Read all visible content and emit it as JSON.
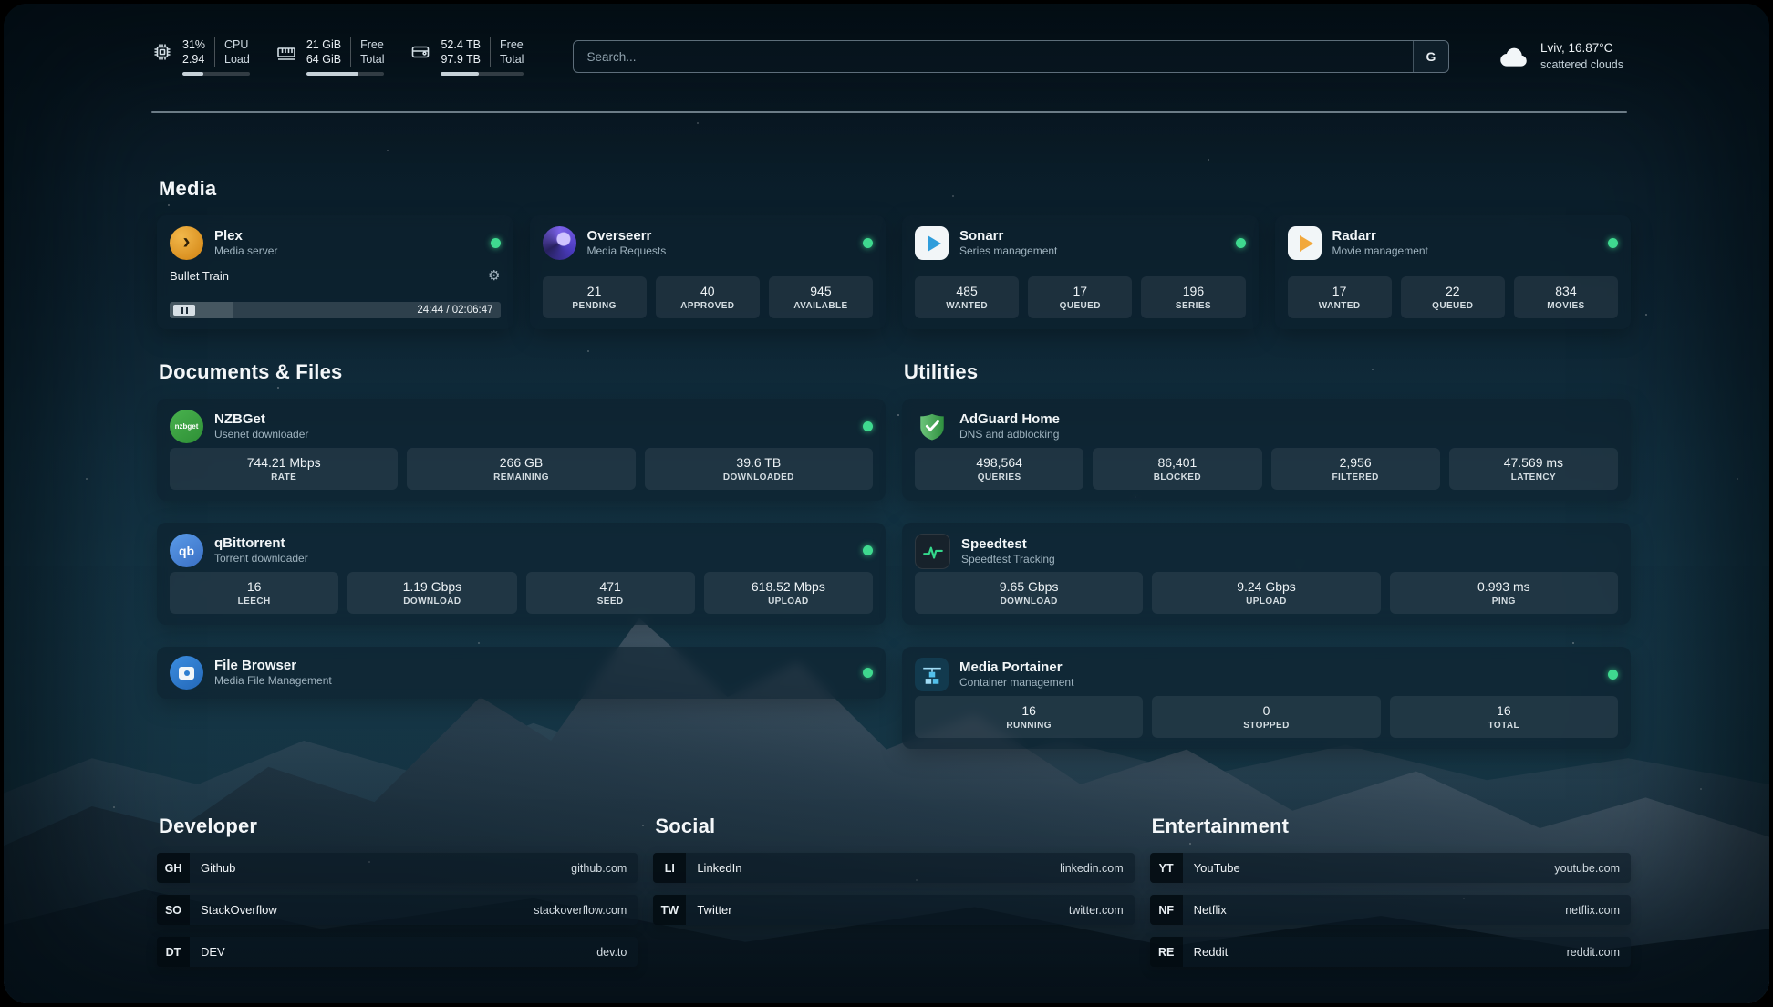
{
  "topbar": {
    "cpu": {
      "value_top": "31%",
      "value_bottom": "2.94",
      "label_top": "CPU",
      "label_bottom": "Load",
      "progress": 31
    },
    "memory": {
      "value_top": "21 GiB",
      "value_bottom": "64 GiB",
      "label_top": "Free",
      "label_bottom": "Total",
      "progress": 67
    },
    "disk": {
      "value_top": "52.4 TB",
      "value_bottom": "97.9 TB",
      "label_top": "Free",
      "label_bottom": "Total",
      "progress": 46
    },
    "search": {
      "placeholder": "Search...",
      "button_label": "G"
    },
    "weather": {
      "location": "Lviv, 16.87°C",
      "condition": "scattered clouds"
    }
  },
  "sections": {
    "media": {
      "title": "Media"
    },
    "documents": {
      "title": "Documents & Files"
    },
    "utilities": {
      "title": "Utilities"
    },
    "developer": {
      "title": "Developer"
    },
    "social": {
      "title": "Social"
    },
    "entertainment": {
      "title": "Entertainment"
    }
  },
  "services": {
    "plex": {
      "name": "Plex",
      "subtitle": "Media server",
      "now_playing": "Bullet Train",
      "time": "24:44 / 02:06:47"
    },
    "overseerr": {
      "name": "Overseerr",
      "subtitle": "Media Requests",
      "stats": [
        {
          "value": "21",
          "label": "PENDING"
        },
        {
          "value": "40",
          "label": "APPROVED"
        },
        {
          "value": "945",
          "label": "AVAILABLE"
        }
      ]
    },
    "sonarr": {
      "name": "Sonarr",
      "subtitle": "Series management",
      "stats": [
        {
          "value": "485",
          "label": "WANTED"
        },
        {
          "value": "17",
          "label": "QUEUED"
        },
        {
          "value": "196",
          "label": "SERIES"
        }
      ]
    },
    "radarr": {
      "name": "Radarr",
      "subtitle": "Movie management",
      "stats": [
        {
          "value": "17",
          "label": "WANTED"
        },
        {
          "value": "22",
          "label": "QUEUED"
        },
        {
          "value": "834",
          "label": "MOVIES"
        }
      ]
    },
    "nzbget": {
      "name": "NZBGet",
      "subtitle": "Usenet downloader",
      "stats": [
        {
          "value": "744.21 Mbps",
          "label": "RATE"
        },
        {
          "value": "266 GB",
          "label": "REMAINING"
        },
        {
          "value": "39.6 TB",
          "label": "DOWNLOADED"
        }
      ]
    },
    "qbittorrent": {
      "name": "qBittorrent",
      "subtitle": "Torrent downloader",
      "stats": [
        {
          "value": "16",
          "label": "LEECH"
        },
        {
          "value": "1.19 Gbps",
          "label": "DOWNLOAD"
        },
        {
          "value": "471",
          "label": "SEED"
        },
        {
          "value": "618.52 Mbps",
          "label": "UPLOAD"
        }
      ]
    },
    "filebrowser": {
      "name": "File Browser",
      "subtitle": "Media File Management"
    },
    "adguard": {
      "name": "AdGuard Home",
      "subtitle": "DNS and adblocking",
      "stats": [
        {
          "value": "498,564",
          "label": "QUERIES"
        },
        {
          "value": "86,401",
          "label": "BLOCKED"
        },
        {
          "value": "2,956",
          "label": "FILTERED"
        },
        {
          "value": "47.569 ms",
          "label": "LATENCY"
        }
      ]
    },
    "speedtest": {
      "name": "Speedtest",
      "subtitle": "Speedtest Tracking",
      "stats": [
        {
          "value": "9.65 Gbps",
          "label": "DOWNLOAD"
        },
        {
          "value": "9.24 Gbps",
          "label": "UPLOAD"
        },
        {
          "value": "0.993 ms",
          "label": "PING"
        }
      ]
    },
    "portainer": {
      "name": "Media Portainer",
      "subtitle": "Container management",
      "stats": [
        {
          "value": "16",
          "label": "RUNNING"
        },
        {
          "value": "0",
          "label": "STOPPED"
        },
        {
          "value": "16",
          "label": "TOTAL"
        }
      ]
    }
  },
  "bookmarks": {
    "developer": [
      {
        "abbr": "GH",
        "name": "Github",
        "domain": "github.com"
      },
      {
        "abbr": "SO",
        "name": "StackOverflow",
        "domain": "stackoverflow.com"
      },
      {
        "abbr": "DT",
        "name": "DEV",
        "domain": "dev.to"
      }
    ],
    "social": [
      {
        "abbr": "LI",
        "name": "LinkedIn",
        "domain": "linkedin.com"
      },
      {
        "abbr": "TW",
        "name": "Twitter",
        "domain": "twitter.com"
      }
    ],
    "entertainment": [
      {
        "abbr": "YT",
        "name": "YouTube",
        "domain": "youtube.com"
      },
      {
        "abbr": "NF",
        "name": "Netflix",
        "domain": "netflix.com"
      },
      {
        "abbr": "RE",
        "name": "Reddit",
        "domain": "reddit.com"
      }
    ]
  },
  "icons": {
    "plex_glyph": "›",
    "nzbget_text": "nzbget",
    "qbittorrent_text": "qb",
    "gear_glyph": "⚙"
  },
  "colors": {
    "status_online": "#3fd98f",
    "accent_green": "#34d98c",
    "card_bg": "rgba(13,32,45,0.62)"
  }
}
